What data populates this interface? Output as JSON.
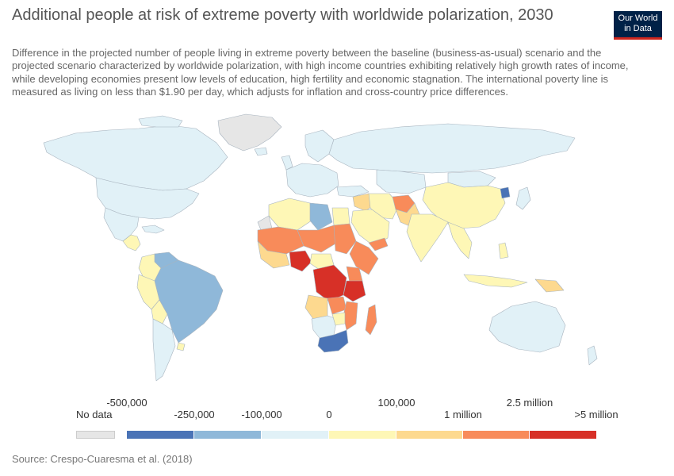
{
  "title": "Additional people at risk of extreme poverty with worldwide polarization, 2030",
  "subtitle": "Difference in the projected number of people living in extreme poverty between the baseline (business-as-usual) scenario and the projected scenario characterized by worldwide polarization, with high income countries exhibiting relatively high growth rates of income, while developing economies present low levels of education, high fertility and economic stagnation. The international poverty line is measured as living on less than $1.90 per day, which adjusts for inflation and cross-country price differences.",
  "logo": {
    "line1": "Our World",
    "line2": "in Data"
  },
  "legend": {
    "no_data_label": "No data",
    "no_data_color": "#e6e6e6",
    "bins": [
      {
        "color": "#4a73b6"
      },
      {
        "color": "#8fb8d9"
      },
      {
        "color": "#e1f1f7"
      },
      {
        "color": "#fef7b6"
      },
      {
        "color": "#fdd98f"
      },
      {
        "color": "#f88b5a"
      },
      {
        "color": "#d73027"
      }
    ],
    "labels": [
      "-500,000",
      "-250,000",
      "-100,000",
      "0",
      "100,000",
      "1 million",
      "2.5 million",
      ">5 million"
    ]
  },
  "regions": [
    {
      "name": "Greenland",
      "level": "No data"
    },
    {
      "name": "Western Sahara",
      "level": "No data"
    },
    {
      "name": "Nigeria",
      "level": ">5 million"
    },
    {
      "name": "Democratic Republic of Congo",
      "level": ">5 million"
    },
    {
      "name": "Tanzania",
      "level": ">5 million"
    },
    {
      "name": "South Africa",
      "level": "-500,000"
    },
    {
      "name": "North Korea",
      "level": "-500,000"
    },
    {
      "name": "Brazil",
      "level": "-250,000"
    },
    {
      "name": "Libya",
      "level": "-250,000"
    },
    {
      "name": "Afghanistan",
      "level": "1 million"
    },
    {
      "name": "Madagascar",
      "level": "1 million"
    }
  ],
  "source": "Source: Crespo-Cuaresma et al. (2018)"
}
